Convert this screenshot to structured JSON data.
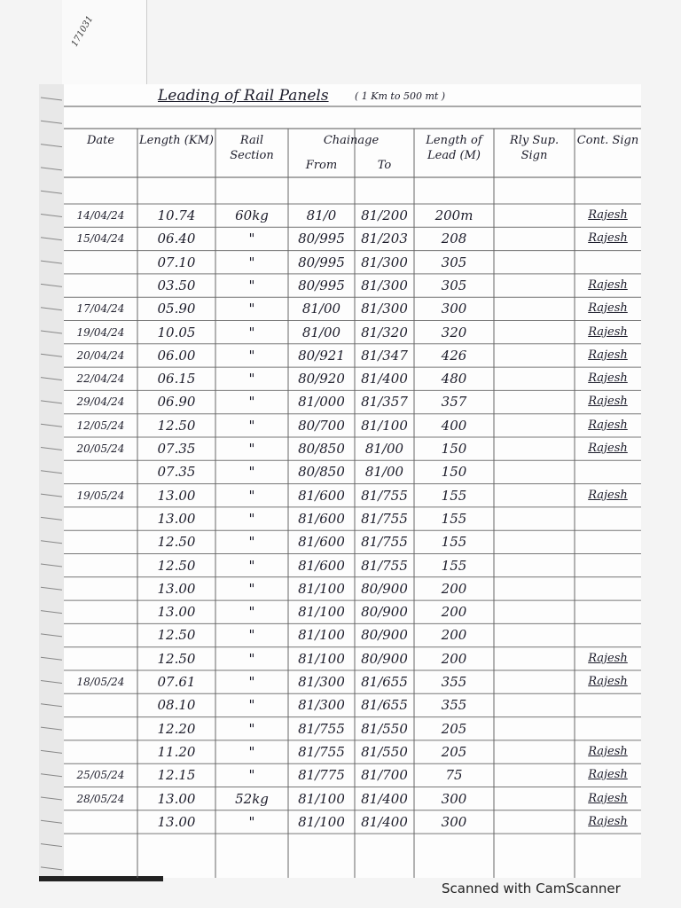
{
  "corner_note": "171031",
  "header": {
    "title": "Leading of Rail Panels",
    "subtitle": "( 1 Km to 500 mt )"
  },
  "table": {
    "columns": [
      "Date",
      "Length (KM)",
      "Rail Section",
      "Chainage",
      "Length of Lead (M)",
      "Rly Sup. Sign",
      "Cont. Sign"
    ],
    "subcolumns": [
      "From",
      "To"
    ],
    "rows": [
      [
        "14/04/24",
        "10.74",
        "60kg",
        "81/0",
        "81/200",
        "200m",
        null,
        "Rajesh"
      ],
      [
        "15/04/24",
        "06.40",
        "\"",
        "80/995",
        "81/203",
        "208",
        null,
        "Rajesh"
      ],
      [
        null,
        "07.10",
        "\"",
        "80/995",
        "81/300",
        "305",
        null,
        null
      ],
      [
        null,
        "03.50",
        "\"",
        "80/995",
        "81/300",
        "305",
        null,
        "Rajesh"
      ],
      [
        "17/04/24",
        "05.90",
        "\"",
        "81/00",
        "81/300",
        "300",
        null,
        "Rajesh"
      ],
      [
        "19/04/24",
        "10.05",
        "\"",
        "81/00",
        "81/320",
        "320",
        null,
        "Rajesh"
      ],
      [
        "20/04/24",
        "06.00",
        "\"",
        "80/921",
        "81/347",
        "426",
        null,
        "Rajesh"
      ],
      [
        "22/04/24",
        "06.15",
        "\"",
        "80/920",
        "81/400",
        "480",
        null,
        "Rajesh"
      ],
      [
        "29/04/24",
        "06.90",
        "\"",
        "81/000",
        "81/357",
        "357",
        null,
        "Rajesh"
      ],
      [
        "12/05/24",
        "12.50",
        "\"",
        "80/700",
        "81/100",
        "400",
        null,
        "Rajesh"
      ],
      [
        "20/05/24",
        "07.35",
        "\"",
        "80/850",
        "81/00",
        "150",
        null,
        "Rajesh"
      ],
      [
        null,
        "07.35",
        "\"",
        "80/850",
        "81/00",
        "150",
        null,
        null
      ],
      [
        "19/05/24",
        "13.00",
        "\"",
        "81/600",
        "81/755",
        "155",
        null,
        "Rajesh"
      ],
      [
        null,
        "13.00",
        "\"",
        "81/600",
        "81/755",
        "155",
        null,
        null
      ],
      [
        null,
        "12.50",
        "\"",
        "81/600",
        "81/755",
        "155",
        null,
        null
      ],
      [
        null,
        "12.50",
        "\"",
        "81/600",
        "81/755",
        "155",
        null,
        null
      ],
      [
        null,
        "13.00",
        "\"",
        "81/100",
        "80/900",
        "200",
        null,
        null
      ],
      [
        null,
        "13.00",
        "\"",
        "81/100",
        "80/900",
        "200",
        null,
        null
      ],
      [
        null,
        "12.50",
        "\"",
        "81/100",
        "80/900",
        "200",
        null,
        null
      ],
      [
        null,
        "12.50",
        "\"",
        "81/100",
        "80/900",
        "200",
        null,
        "Rajesh"
      ],
      [
        "18/05/24",
        "07.61",
        "\"",
        "81/300",
        "81/655",
        "355",
        null,
        "Rajesh"
      ],
      [
        null,
        "08.10",
        "\"",
        "81/300",
        "81/655",
        "355",
        null,
        null
      ],
      [
        null,
        "12.20",
        "\"",
        "81/755",
        "81/550",
        "205",
        null,
        null
      ],
      [
        null,
        "11.20",
        "\"",
        "81/755",
        "81/550",
        "205",
        null,
        "Rajesh"
      ],
      [
        "25/05/24",
        "12.15",
        "\"",
        "81/775",
        "81/700",
        "75",
        null,
        "Rajesh"
      ],
      [
        "28/05/24",
        "13.00",
        "52kg",
        "81/100",
        "81/400",
        "300",
        null,
        "Rajesh"
      ],
      [
        null,
        "13.00",
        "\"",
        "81/100",
        "81/400",
        "300",
        null,
        "Rajesh"
      ]
    ]
  },
  "footer": "Scanned with CamScanner"
}
